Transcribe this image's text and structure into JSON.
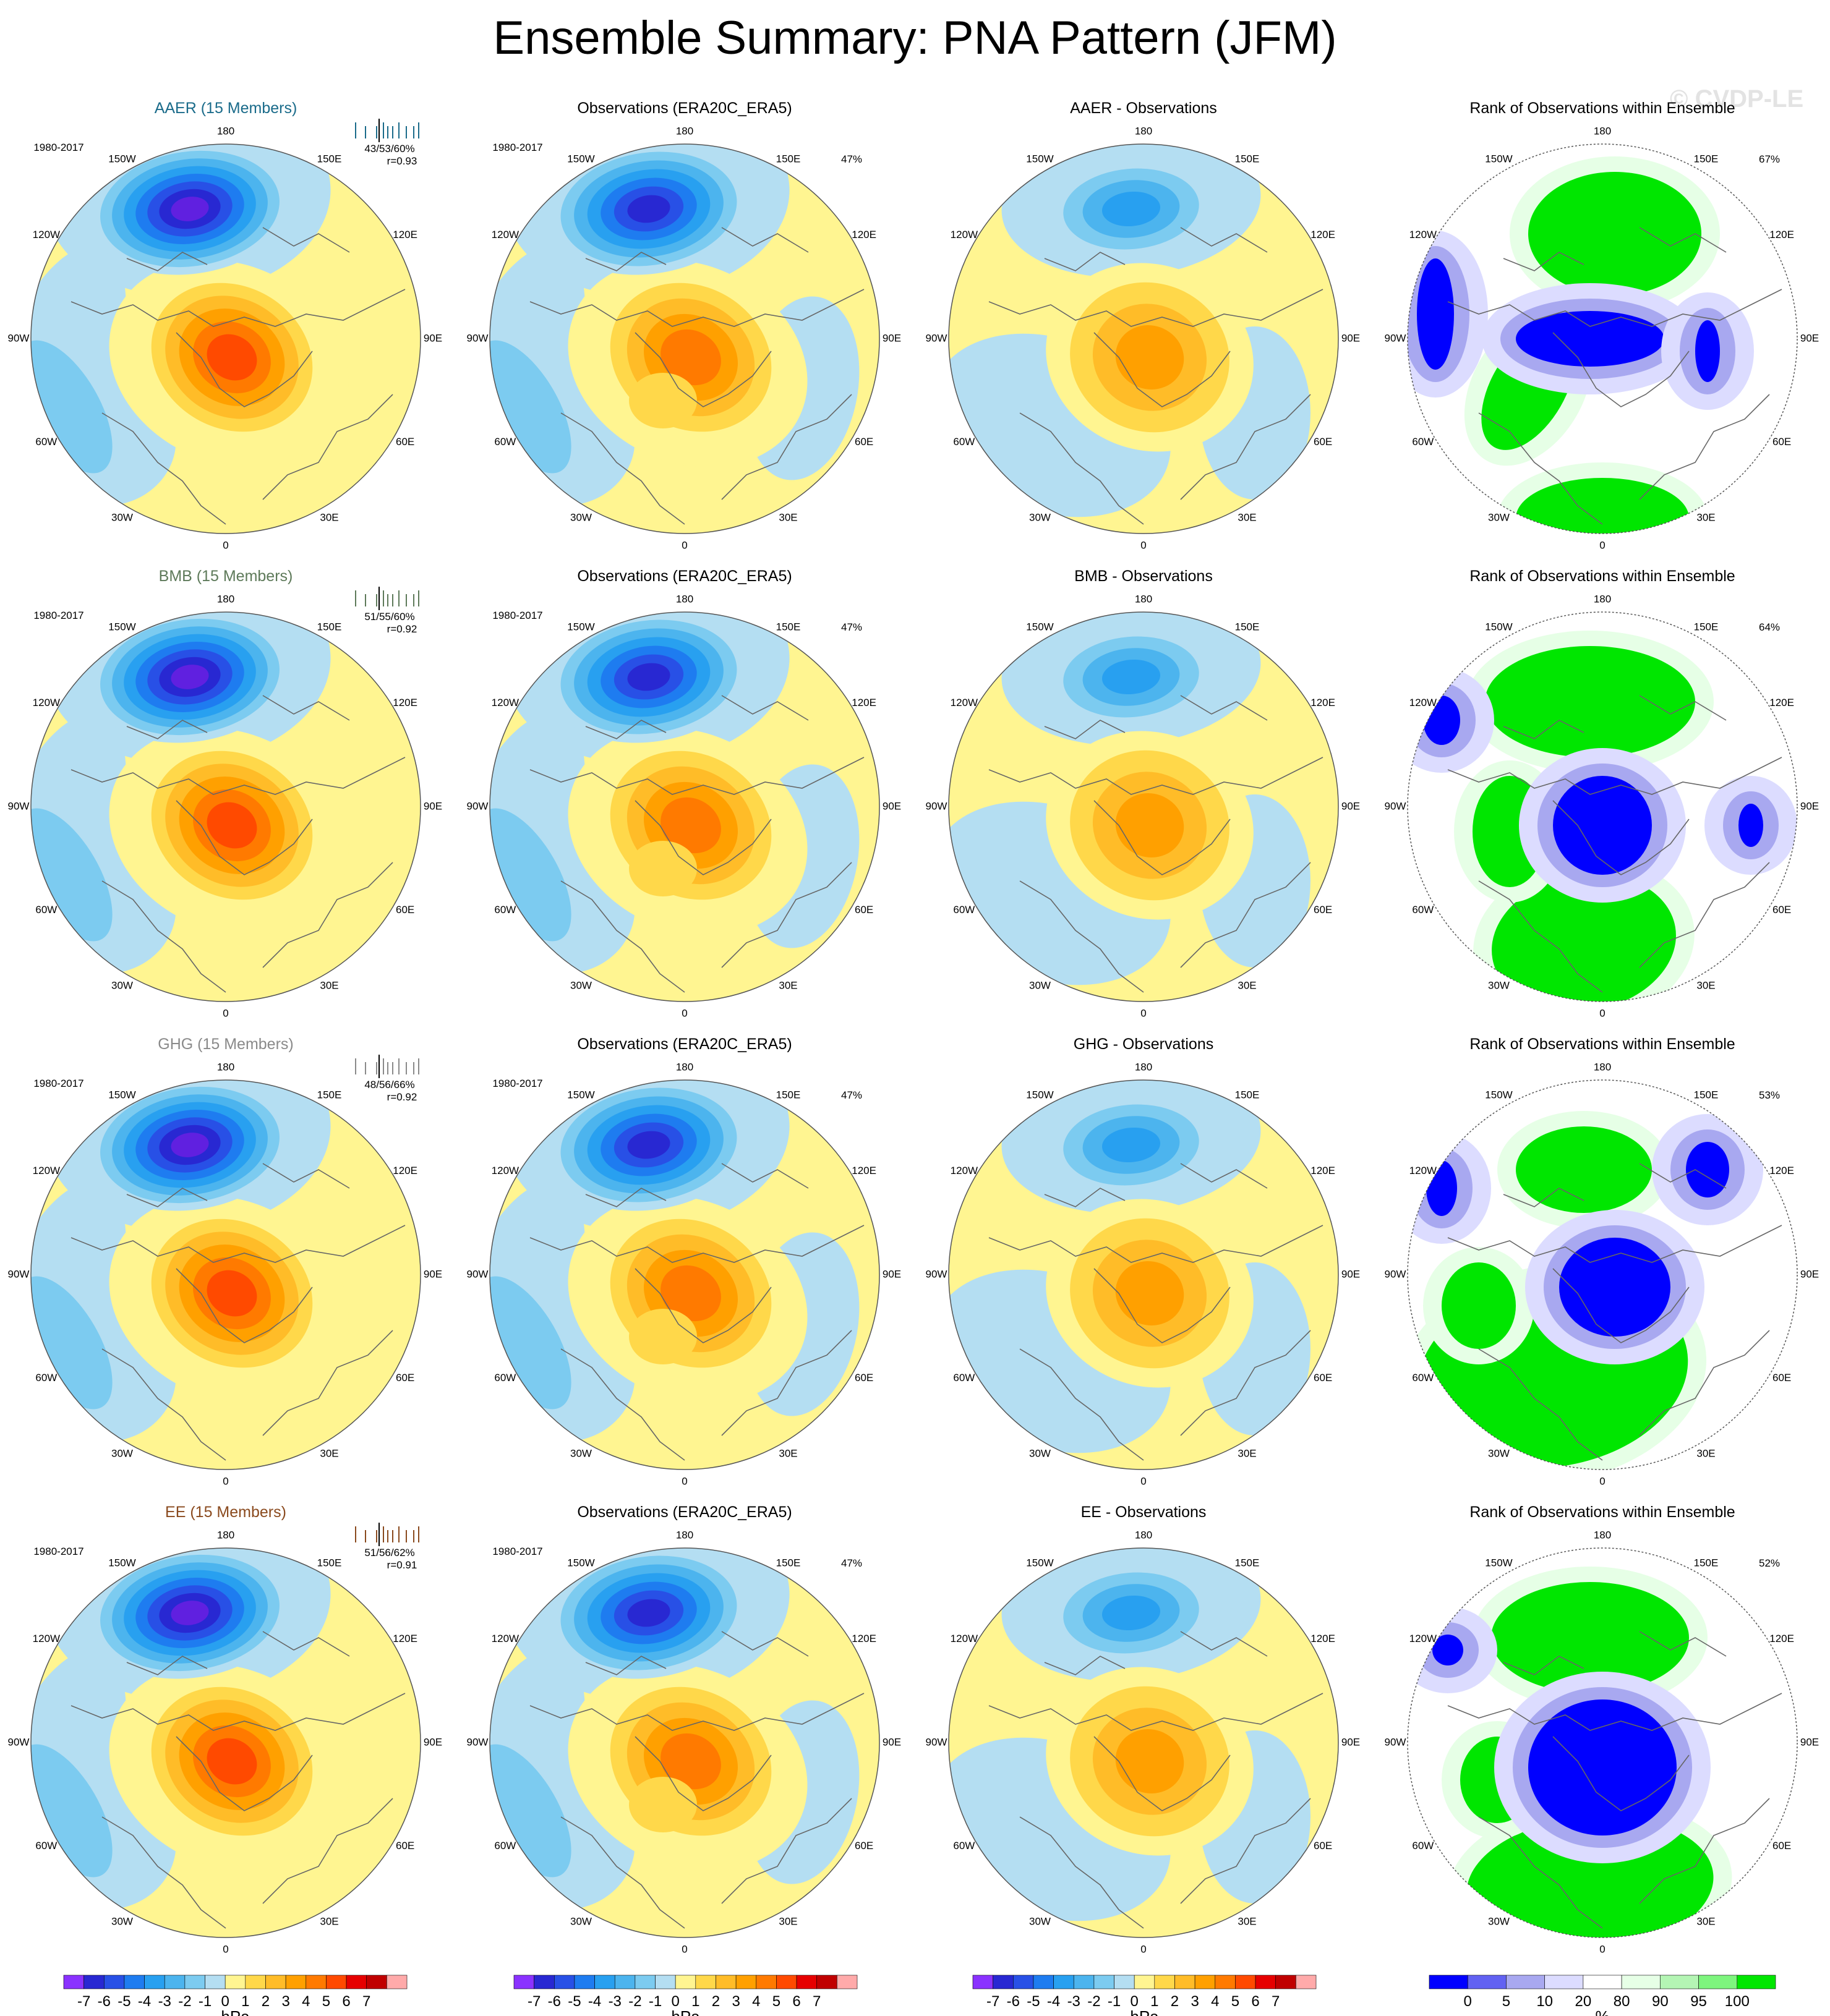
{
  "page_title": "Ensemble Summary: PNA Pattern (JFM)",
  "watermark": "© CVDP-LE",
  "colors": {
    "pos": [
      "#fff591",
      "#ffd84a",
      "#ffbc28",
      "#ffa000",
      "#ff7a00",
      "#ff4a00",
      "#e60000",
      "#c00000",
      "#ffaaaa"
    ],
    "neg": [
      "#b4def2",
      "#7ccbf0",
      "#4cb4ee",
      "#28a0f0",
      "#1e7cf0",
      "#2850e6",
      "#2828d2",
      "#6020e0",
      "#8a32ff"
    ],
    "rank": [
      "#0000ff",
      "#6262f2",
      "#a8a8f0",
      "#dcdcff",
      "#ffffff",
      "#e6ffe6",
      "#b4f5b4",
      "#7ef57e",
      "#00e600"
    ],
    "coast": "#666666"
  },
  "rows": [
    {
      "name": "AAER",
      "row_title": "AAER (15 Members)",
      "title_color": "#1a6b8a",
      "period": "1980-2017",
      "stats_line1": "43/53/60%",
      "stats_line2": "r=0.93",
      "obs_title": "Observations (ERA20C_ERA5)",
      "obs_pct": "47%",
      "diff_title": "AAER - Observations",
      "rank_title": "Rank of Observations within Ensemble",
      "rank_pct": "67%",
      "ens_max": 7.0,
      "obs_max": 5.7,
      "diff_max": 2.6
    },
    {
      "name": "BMB",
      "row_title": "BMB (15 Members)",
      "title_color": "#5e7a5a",
      "period": "1980-2017",
      "stats_line1": "51/55/60%",
      "stats_line2": "r=0.92",
      "obs_title": "Observations (ERA20C_ERA5)",
      "obs_pct": "47%",
      "diff_title": "BMB - Observations",
      "rank_title": "Rank of Observations within Ensemble",
      "rank_pct": "64%",
      "ens_max": 7.2,
      "obs_max": 5.7,
      "diff_max": 3.2
    },
    {
      "name": "GHG",
      "row_title": "GHG (15 Members)",
      "title_color": "#8a8a8a",
      "period": "1980-2017",
      "stats_line1": "48/56/66%",
      "stats_line2": "r=0.92",
      "obs_title": "Observations (ERA20C_ERA5)",
      "obs_pct": "47%",
      "diff_title": "GHG - Observations",
      "rank_title": "Rank of Observations within Ensemble",
      "rank_pct": "53%",
      "ens_max": 7.1,
      "obs_max": 5.7,
      "diff_max": 3.1
    },
    {
      "name": "EE",
      "row_title": "EE (15 Members)",
      "title_color": "#8a4a1e",
      "period": "1980-2017",
      "stats_line1": "51/56/62%",
      "stats_line2": "r=0.91",
      "obs_title": "Observations (ERA20C_ERA5)",
      "obs_pct": "47%",
      "diff_title": "EE - Observations",
      "rank_title": "Rank of Observations within Ensemble",
      "rank_pct": "52%",
      "ens_max": 7.2,
      "obs_max": 5.7,
      "diff_max": 3.3
    }
  ],
  "lon_labels": [
    "180",
    "150E",
    "120E",
    "90E",
    "60E",
    "30E",
    "0",
    "30W",
    "60W",
    "90W",
    "120W",
    "150W"
  ],
  "colorbar_hpa": {
    "ticks": [
      "-7",
      "-6",
      "-5",
      "-4",
      "-3",
      "-2",
      "-1",
      "0",
      "1",
      "2",
      "3",
      "4",
      "5",
      "6",
      "7"
    ],
    "unit": "hPa",
    "colors": [
      "#8a32ff",
      "#2828d2",
      "#2850e6",
      "#1e7cf0",
      "#28a0f0",
      "#4cb4ee",
      "#7ccbf0",
      "#b4def2",
      "#fff591",
      "#ffd84a",
      "#ffbc28",
      "#ffa000",
      "#ff7a00",
      "#ff4a00",
      "#e60000",
      "#c00000",
      "#ffaaaa"
    ]
  },
  "colorbar_rank": {
    "ticks": [
      "0",
      "5",
      "10",
      "20",
      "80",
      "90",
      "95",
      "100"
    ],
    "unit": "%",
    "colors": [
      "#0000ff",
      "#6262f2",
      "#a8a8f0",
      "#dcdcff",
      "#ffffff",
      "#e6ffe6",
      "#b4f5b4",
      "#7ef57e",
      "#00e600"
    ]
  },
  "chart_data": {
    "type": "heatmap",
    "title": "Ensemble Summary: PNA Pattern (JFM)",
    "projection": "north polar stereographic",
    "variable": "sea level pressure PNA pattern",
    "units": "hPa",
    "contour_levels_hpa": [
      -7,
      -6,
      -5,
      -4,
      -3,
      -2,
      -1,
      0,
      1,
      2,
      3,
      4,
      5,
      6,
      7
    ],
    "rank_levels_pct": [
      0,
      5,
      10,
      20,
      80,
      90,
      95,
      100
    ],
    "period": "1980-2017",
    "panels": [
      {
        "row": "AAER",
        "ensemble_mean_stats": "43/53/60%",
        "pattern_r": 0.93,
        "obs_pct_variance": 47,
        "rank_pct": 67
      },
      {
        "row": "BMB",
        "ensemble_mean_stats": "51/55/60%",
        "pattern_r": 0.92,
        "obs_pct_variance": 47,
        "rank_pct": 64
      },
      {
        "row": "GHG",
        "ensemble_mean_stats": "48/56/66%",
        "pattern_r": 0.92,
        "obs_pct_variance": 47,
        "rank_pct": 53
      },
      {
        "row": "EE",
        "ensemble_mean_stats": "51/56/62%",
        "pattern_r": 0.91,
        "obs_pct_variance": 47,
        "rank_pct": 52
      }
    ]
  }
}
